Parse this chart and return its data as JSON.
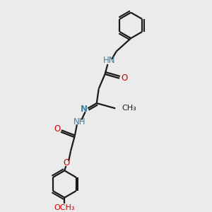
{
  "bg_color": "#ebebeb",
  "bond_color": "#1a1a1a",
  "N_color": "#4080a0",
  "O_color": "#cc0000",
  "line_width": 1.6,
  "font_size": 8.5,
  "fig_size": [
    3.0,
    3.0
  ],
  "dpi": 100,
  "xlim": [
    0,
    10
  ],
  "ylim": [
    0,
    10
  ]
}
